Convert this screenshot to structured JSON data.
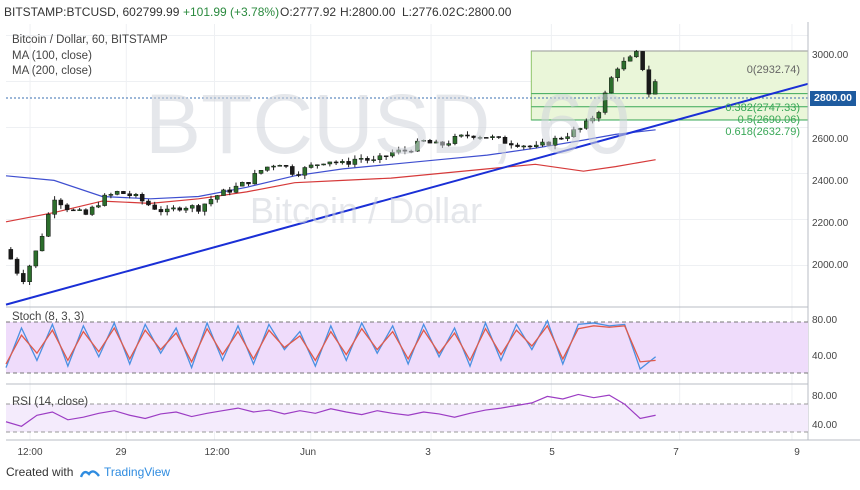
{
  "header": {
    "symbol": "BITSTAMP:BTCUSD, 60",
    "last": "2799.99",
    "change": "+101.99 (+3.78%)",
    "open": "O:2777.92",
    "high": "H:2800.00",
    "low": "L:2776.02",
    "close": "C:2800.00"
  },
  "legend": {
    "title": "Bitcoin / Dollar, 60, BITSTAMP",
    "ma100": "MA (100, close)",
    "ma200": "MA (200, close)"
  },
  "watermark": {
    "symbol": "BTCUSD, 60",
    "name": "Bitcoin / Dollar"
  },
  "price_box": "2800.00",
  "fib_labels": [
    "0(2932.74)",
    "0.382(2747.33)",
    "0.5(2690.06)",
    "0.618(2632.79)"
  ],
  "stoch_label": "Stoch (8, 3, 3)",
  "rsi_label": "RSI (14, close)",
  "footer": {
    "created": "Created with",
    "brand": "TradingView"
  },
  "colors": {
    "ma100": "#3f4fd0",
    "ma200": "#d63a3a",
    "trendline": "#1a2fd6",
    "candle_up": "#2c6e2c",
    "candle_down": "#1a1a1a",
    "fib_band": "#eaf6d9",
    "stoch_k": "#4a90e2",
    "stoch_d": "#e05a4a",
    "rsi": "#9c3dc4",
    "panel_bg": "#efdcfb"
  },
  "chart_data": [
    {
      "type": "candlestick",
      "title": "Bitcoin / Dollar, 60, BITSTAMP",
      "y_ticks": [
        "3000.00",
        "2800.00",
        "2600.00",
        "2400.00",
        "2200.00",
        "2000.00"
      ],
      "x_ticks": [
        "12:00",
        "29",
        "12:00",
        "Jun",
        "3",
        "5",
        "7",
        "9"
      ],
      "ylim": [
        1850,
        3050
      ],
      "close_path": [
        [
          0,
          2070
        ],
        [
          2,
          1930
        ],
        [
          4,
          2080
        ],
        [
          6,
          2300
        ],
        [
          8,
          2240
        ],
        [
          10,
          2220
        ],
        [
          12,
          2290
        ],
        [
          14,
          2320
        ],
        [
          16,
          2300
        ],
        [
          18,
          2260
        ],
        [
          20,
          2230
        ],
        [
          22,
          2260
        ],
        [
          24,
          2250
        ],
        [
          26,
          2300
        ],
        [
          28,
          2330
        ],
        [
          30,
          2360
        ],
        [
          32,
          2420
        ],
        [
          34,
          2450
        ],
        [
          36,
          2400
        ],
        [
          38,
          2430
        ],
        [
          40,
          2460
        ],
        [
          42,
          2440
        ],
        [
          44,
          2470
        ],
        [
          46,
          2450
        ],
        [
          48,
          2490
        ],
        [
          50,
          2500
        ],
        [
          52,
          2540
        ],
        [
          54,
          2520
        ],
        [
          56,
          2550
        ],
        [
          58,
          2570
        ],
        [
          60,
          2560
        ],
        [
          62,
          2540
        ],
        [
          64,
          2530
        ],
        [
          66,
          2510
        ],
        [
          68,
          2540
        ],
        [
          70,
          2570
        ],
        [
          72,
          2600
        ],
        [
          74,
          2680
        ],
        [
          76,
          2860
        ],
        [
          78,
          2900
        ],
        [
          79,
          2932
        ],
        [
          80,
          2740
        ],
        [
          81,
          2800
        ]
      ],
      "ma100_path": [
        [
          0,
          2390
        ],
        [
          6,
          2370
        ],
        [
          12,
          2300
        ],
        [
          18,
          2290
        ],
        [
          24,
          2300
        ],
        [
          30,
          2340
        ],
        [
          36,
          2390
        ],
        [
          42,
          2420
        ],
        [
          48,
          2440
        ],
        [
          54,
          2460
        ],
        [
          60,
          2480
        ],
        [
          66,
          2510
        ],
        [
          72,
          2545
        ],
        [
          76,
          2570
        ],
        [
          81,
          2590
        ]
      ],
      "ma200_path": [
        [
          0,
          2190
        ],
        [
          6,
          2230
        ],
        [
          12,
          2280
        ],
        [
          18,
          2270
        ],
        [
          24,
          2290
        ],
        [
          30,
          2320
        ],
        [
          36,
          2360
        ],
        [
          42,
          2370
        ],
        [
          48,
          2380
        ],
        [
          54,
          2400
        ],
        [
          60,
          2420
        ],
        [
          66,
          2440
        ],
        [
          72,
          2410
        ],
        [
          76,
          2430
        ],
        [
          81,
          2460
        ]
      ],
      "trendline": [
        [
          0,
          1830
        ],
        [
          100,
          2790
        ]
      ],
      "fib_levels": [
        {
          "ratio": 0,
          "value": 2932.74
        },
        {
          "ratio": 0.382,
          "value": 2747.33
        },
        {
          "ratio": 0.5,
          "value": 2690.06
        },
        {
          "ratio": 0.618,
          "value": 2632.79
        }
      ],
      "last_price": 2800.0
    },
    {
      "type": "line",
      "title": "Stoch (8, 3, 3)",
      "y_ticks": [
        "80.00",
        "40.00"
      ],
      "ylim": [
        0,
        100
      ],
      "band": [
        20,
        80
      ],
      "series": [
        {
          "values": [
            20,
            75,
            30,
            80,
            22,
            78,
            35,
            82,
            25,
            80,
            40,
            75,
            20,
            82,
            30,
            78,
            25,
            80,
            45,
            70,
            22,
            78,
            30,
            82,
            40,
            78,
            25,
            80,
            35,
            75,
            22,
            82,
            30,
            80,
            45,
            85,
            25,
            80,
            82,
            78,
            80,
            18,
            35
          ]
        },
        {
          "values": [
            25,
            65,
            40,
            72,
            30,
            70,
            42,
            75,
            32,
            72,
            45,
            68,
            28,
            74,
            38,
            70,
            32,
            72,
            48,
            64,
            30,
            70,
            38,
            74,
            45,
            70,
            32,
            72,
            40,
            68,
            30,
            74,
            38,
            72,
            50,
            78,
            32,
            74,
            78,
            76,
            78,
            28,
            30
          ]
        }
      ]
    },
    {
      "type": "line",
      "title": "RSI (14, close)",
      "y_ticks": [
        "80.00",
        "40.00"
      ],
      "ylim": [
        20,
        100
      ],
      "band": [
        30,
        70
      ],
      "series": [
        {
          "values": [
            45,
            38,
            55,
            60,
            48,
            52,
            58,
            62,
            55,
            50,
            57,
            60,
            53,
            58,
            62,
            66,
            60,
            63,
            57,
            62,
            58,
            65,
            60,
            56,
            62,
            58,
            55,
            60,
            57,
            52,
            58,
            63,
            66,
            70,
            74,
            84,
            80,
            87,
            82,
            86,
            72,
            50,
            55
          ]
        }
      ]
    }
  ]
}
